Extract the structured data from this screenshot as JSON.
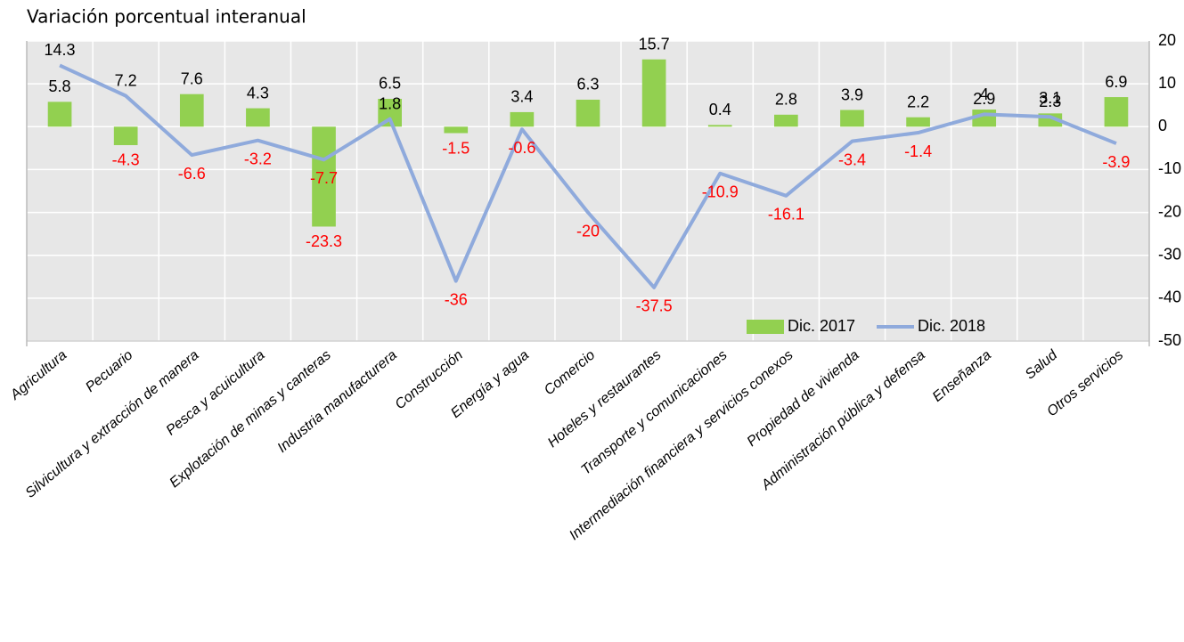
{
  "chart_data": {
    "type": "bar_line",
    "title": "Variación porcentual interanual",
    "categories": [
      "Agricultura",
      "Pecuario",
      "Silvicultura y extracción de manera",
      "Pesca y acuicultura",
      "Explotación de minas y canteras",
      "Industria manufacturera",
      "Construcción",
      "Energía y agua",
      "Comercio",
      "Hoteles y restaurantes",
      "Transporte y comunicaciones",
      "Intermediación financiera y servicios conexos",
      "Propiedad de vivienda",
      "Administración pública y defensa",
      "Enseñanza",
      "Salud",
      "Otros servicios"
    ],
    "series": [
      {
        "name": "Dic. 2017",
        "type": "bar",
        "color": "#92d050",
        "values": [
          5.8,
          -4.3,
          7.6,
          4.3,
          -23.3,
          6.5,
          -1.5,
          3.4,
          6.3,
          15.7,
          0.4,
          2.8,
          3.9,
          2.2,
          4,
          3.1,
          6.9
        ]
      },
      {
        "name": "Dic. 2018",
        "type": "line",
        "color": "#8faadc",
        "values": [
          14.3,
          7.2,
          -6.6,
          -3.2,
          -7.7,
          1.8,
          -36,
          -0.6,
          -20,
          -37.5,
          -10.9,
          -16.1,
          -3.4,
          -1.4,
          2.9,
          2.3,
          -3.9
        ]
      }
    ],
    "ylim": [
      -50,
      20
    ],
    "yticks": [
      -50,
      -40,
      -30,
      -20,
      -10,
      0,
      10,
      20
    ],
    "grid": true,
    "legend": "lower right",
    "negative_label_color": "#ff0000"
  }
}
